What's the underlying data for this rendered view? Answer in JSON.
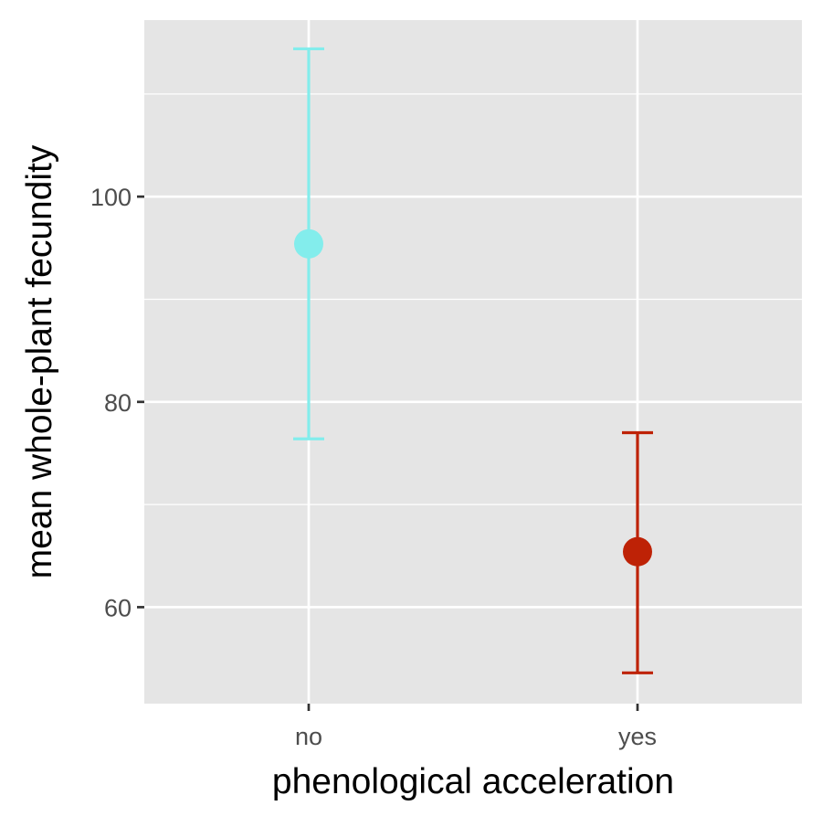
{
  "chart_data": {
    "type": "errorbar",
    "x": [
      "no",
      "yes"
    ],
    "series": [
      {
        "values": [
          95.4,
          65.4
        ],
        "lower": [
          76.4,
          53.6
        ],
        "upper": [
          114.4,
          77.0
        ],
        "colors": [
          "#83EDEC",
          "#BE2206"
        ]
      }
    ],
    "xlabel": "phenological acceleration",
    "ylabel": "mean whole-plant fecundity",
    "xtick_labels": [
      "no",
      "yes"
    ],
    "ytick_values": [
      60,
      80,
      100
    ],
    "ytick_labels": [
      "60",
      "80",
      "100"
    ],
    "ylim": [
      50.6,
      117.2
    ],
    "grid": true,
    "legend": "none"
  },
  "colors": {
    "panel_background": "#E5E5E5",
    "gridline": "#FFFFFF",
    "tick_mark": "#333333",
    "tick_text": "#4D4D4D"
  }
}
